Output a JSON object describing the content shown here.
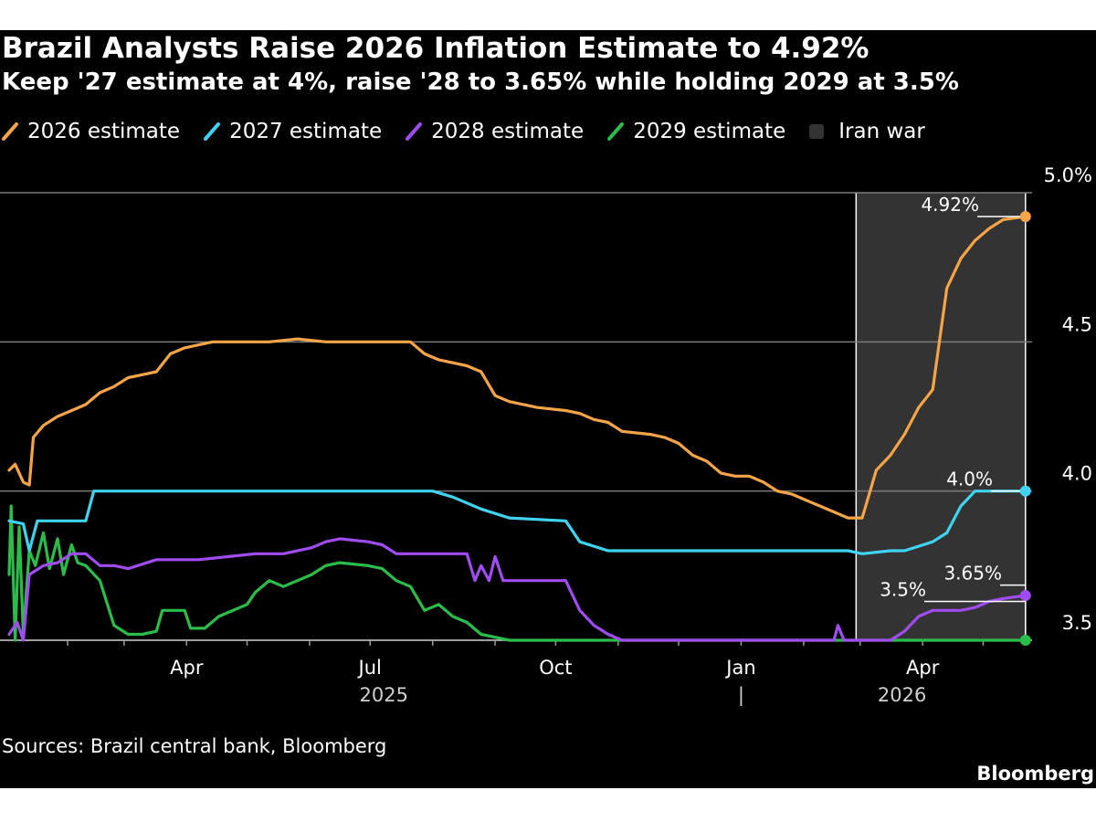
{
  "chart_data": {
    "type": "line",
    "title": "Brazil Analysts Raise 2026 Inflation Estimate to 4.92%",
    "subtitle": "Keep '27 estimate at 4%, raise '28 to 3.65% while holding 2029 at 3.5%",
    "ylim": [
      3.5,
      5.0
    ],
    "y_ticks": [
      {
        "value": 3.5,
        "label": "3.5"
      },
      {
        "value": 4.0,
        "label": "4.0"
      },
      {
        "value": 4.5,
        "label": "4.5"
      },
      {
        "value": 5.0,
        "label": "5.0%"
      }
    ],
    "xlim": [
      "2025-01-03",
      "2026-05-23"
    ],
    "x_ticks": [
      {
        "date": "2025-04-01",
        "label": "Apr"
      },
      {
        "date": "2025-07-01",
        "label": "Jul"
      },
      {
        "date": "2025-10-01",
        "label": "Oct"
      },
      {
        "date": "2026-01-01",
        "label": "Jan"
      },
      {
        "date": "2026-04-01",
        "label": "Apr"
      }
    ],
    "year_labels": [
      {
        "date": "2025-07-01",
        "label": "2025"
      },
      {
        "date": "2026-03-15",
        "label": "2026"
      }
    ],
    "year_separator": {
      "date": "2026-01-01",
      "label": "|"
    },
    "shaded_region": {
      "name": "Iran war",
      "start": "2026-02-27",
      "end": "2026-05-22",
      "color": "#333333"
    },
    "grid": true,
    "legend_position": "top-left",
    "series": [
      {
        "name": "2026 estimate",
        "color": "#f5a447",
        "points": [
          [
            "2025-01-03",
            4.07
          ],
          [
            "2025-01-06",
            4.09
          ],
          [
            "2025-01-10",
            4.03
          ],
          [
            "2025-01-13",
            4.02
          ],
          [
            "2025-01-15",
            4.18
          ],
          [
            "2025-01-20",
            4.22
          ],
          [
            "2025-01-27",
            4.25
          ],
          [
            "2025-02-03",
            4.27
          ],
          [
            "2025-02-10",
            4.29
          ],
          [
            "2025-02-17",
            4.33
          ],
          [
            "2025-02-24",
            4.35
          ],
          [
            "2025-03-03",
            4.38
          ],
          [
            "2025-03-10",
            4.39
          ],
          [
            "2025-03-17",
            4.4
          ],
          [
            "2025-03-24",
            4.46
          ],
          [
            "2025-03-31",
            4.48
          ],
          [
            "2025-04-07",
            4.49
          ],
          [
            "2025-04-14",
            4.5
          ],
          [
            "2025-04-28",
            4.5
          ],
          [
            "2025-05-12",
            4.5
          ],
          [
            "2025-05-26",
            4.51
          ],
          [
            "2025-06-09",
            4.5
          ],
          [
            "2025-06-23",
            4.5
          ],
          [
            "2025-07-07",
            4.5
          ],
          [
            "2025-07-21",
            4.5
          ],
          [
            "2025-07-28",
            4.46
          ],
          [
            "2025-08-04",
            4.44
          ],
          [
            "2025-08-11",
            4.43
          ],
          [
            "2025-08-18",
            4.42
          ],
          [
            "2025-08-25",
            4.4
          ],
          [
            "2025-09-01",
            4.32
          ],
          [
            "2025-09-08",
            4.3
          ],
          [
            "2025-09-22",
            4.28
          ],
          [
            "2025-10-06",
            4.27
          ],
          [
            "2025-10-13",
            4.26
          ],
          [
            "2025-10-20",
            4.24
          ],
          [
            "2025-10-27",
            4.23
          ],
          [
            "2025-11-03",
            4.2
          ],
          [
            "2025-11-17",
            4.19
          ],
          [
            "2025-11-24",
            4.18
          ],
          [
            "2025-12-01",
            4.16
          ],
          [
            "2025-12-08",
            4.12
          ],
          [
            "2025-12-15",
            4.1
          ],
          [
            "2025-12-22",
            4.06
          ],
          [
            "2025-12-29",
            4.05
          ],
          [
            "2026-01-05",
            4.05
          ],
          [
            "2026-01-12",
            4.03
          ],
          [
            "2026-01-19",
            4.0
          ],
          [
            "2026-01-26",
            3.99
          ],
          [
            "2026-02-02",
            3.97
          ],
          [
            "2026-02-09",
            3.95
          ],
          [
            "2026-02-16",
            3.93
          ],
          [
            "2026-02-23",
            3.91
          ],
          [
            "2026-03-02",
            3.91
          ],
          [
            "2026-03-09",
            4.07
          ],
          [
            "2026-03-16",
            4.12
          ],
          [
            "2026-03-23",
            4.19
          ],
          [
            "2026-03-30",
            4.28
          ],
          [
            "2026-04-06",
            4.34
          ],
          [
            "2026-04-13",
            4.68
          ],
          [
            "2026-04-20",
            4.78
          ],
          [
            "2026-04-27",
            4.84
          ],
          [
            "2026-05-04",
            4.88
          ],
          [
            "2026-05-11",
            4.91
          ],
          [
            "2026-05-22",
            4.92
          ]
        ]
      },
      {
        "name": "2027 estimate",
        "color": "#3fd3f0",
        "points": [
          [
            "2025-01-03",
            3.9
          ],
          [
            "2025-01-10",
            3.89
          ],
          [
            "2025-01-13",
            3.8
          ],
          [
            "2025-01-17",
            3.9
          ],
          [
            "2025-02-10",
            3.9
          ],
          [
            "2025-02-14",
            4.0
          ],
          [
            "2025-08-01",
            4.0
          ],
          [
            "2025-08-11",
            3.98
          ],
          [
            "2025-08-25",
            3.94
          ],
          [
            "2025-09-08",
            3.91
          ],
          [
            "2025-10-06",
            3.9
          ],
          [
            "2025-10-13",
            3.83
          ],
          [
            "2025-10-27",
            3.8
          ],
          [
            "2025-11-03",
            3.8
          ],
          [
            "2026-02-23",
            3.8
          ],
          [
            "2026-03-02",
            3.79
          ],
          [
            "2026-03-16",
            3.8
          ],
          [
            "2026-03-23",
            3.8
          ],
          [
            "2026-04-06",
            3.83
          ],
          [
            "2026-04-13",
            3.86
          ],
          [
            "2026-04-20",
            3.95
          ],
          [
            "2026-04-27",
            4.0
          ],
          [
            "2026-05-22",
            4.0
          ]
        ]
      },
      {
        "name": "2028 estimate",
        "color": "#a04cf2",
        "points": [
          [
            "2025-01-03",
            3.52
          ],
          [
            "2025-01-07",
            3.56
          ],
          [
            "2025-01-10",
            3.5
          ],
          [
            "2025-01-13",
            3.72
          ],
          [
            "2025-01-20",
            3.75
          ],
          [
            "2025-01-27",
            3.76
          ],
          [
            "2025-02-03",
            3.79
          ],
          [
            "2025-02-10",
            3.79
          ],
          [
            "2025-02-17",
            3.75
          ],
          [
            "2025-02-24",
            3.75
          ],
          [
            "2025-03-03",
            3.74
          ],
          [
            "2025-03-17",
            3.77
          ],
          [
            "2025-04-07",
            3.77
          ],
          [
            "2025-05-05",
            3.79
          ],
          [
            "2025-05-19",
            3.79
          ],
          [
            "2025-06-02",
            3.81
          ],
          [
            "2025-06-09",
            3.83
          ],
          [
            "2025-06-16",
            3.84
          ],
          [
            "2025-06-30",
            3.83
          ],
          [
            "2025-07-07",
            3.82
          ],
          [
            "2025-07-14",
            3.79
          ],
          [
            "2025-07-21",
            3.79
          ],
          [
            "2025-08-18",
            3.79
          ],
          [
            "2025-08-22",
            3.7
          ],
          [
            "2025-08-25",
            3.75
          ],
          [
            "2025-08-29",
            3.7
          ],
          [
            "2025-09-01",
            3.78
          ],
          [
            "2025-09-05",
            3.7
          ],
          [
            "2025-10-01",
            3.7
          ],
          [
            "2025-10-06",
            3.7
          ],
          [
            "2025-10-13",
            3.6
          ],
          [
            "2025-10-20",
            3.55
          ],
          [
            "2025-10-27",
            3.52
          ],
          [
            "2025-11-03",
            3.5
          ],
          [
            "2026-02-16",
            3.5
          ],
          [
            "2026-02-18",
            3.55
          ],
          [
            "2026-02-21",
            3.5
          ],
          [
            "2026-03-16",
            3.5
          ],
          [
            "2026-03-23",
            3.53
          ],
          [
            "2026-03-30",
            3.58
          ],
          [
            "2026-04-06",
            3.6
          ],
          [
            "2026-04-20",
            3.6
          ],
          [
            "2026-04-27",
            3.61
          ],
          [
            "2026-05-04",
            3.63
          ],
          [
            "2026-05-11",
            3.64
          ],
          [
            "2026-05-22",
            3.65
          ]
        ]
      },
      {
        "name": "2029 estimate",
        "color": "#2bbd4a",
        "points": [
          [
            "2025-01-03",
            3.72
          ],
          [
            "2025-01-04",
            3.95
          ],
          [
            "2025-01-06",
            3.5
          ],
          [
            "2025-01-08",
            3.88
          ],
          [
            "2025-01-10",
            3.52
          ],
          [
            "2025-01-13",
            3.8
          ],
          [
            "2025-01-16",
            3.75
          ],
          [
            "2025-01-20",
            3.86
          ],
          [
            "2025-01-23",
            3.74
          ],
          [
            "2025-01-27",
            3.84
          ],
          [
            "2025-01-30",
            3.72
          ],
          [
            "2025-02-03",
            3.82
          ],
          [
            "2025-02-06",
            3.76
          ],
          [
            "2025-02-10",
            3.75
          ],
          [
            "2025-02-17",
            3.7
          ],
          [
            "2025-02-24",
            3.55
          ],
          [
            "2025-03-03",
            3.52
          ],
          [
            "2025-03-10",
            3.52
          ],
          [
            "2025-03-17",
            3.53
          ],
          [
            "2025-03-20",
            3.6
          ],
          [
            "2025-03-31",
            3.6
          ],
          [
            "2025-04-03",
            3.54
          ],
          [
            "2025-04-10",
            3.54
          ],
          [
            "2025-04-17",
            3.58
          ],
          [
            "2025-04-24",
            3.6
          ],
          [
            "2025-05-01",
            3.62
          ],
          [
            "2025-05-05",
            3.66
          ],
          [
            "2025-05-12",
            3.7
          ],
          [
            "2025-05-19",
            3.68
          ],
          [
            "2025-05-26",
            3.7
          ],
          [
            "2025-06-02",
            3.72
          ],
          [
            "2025-06-09",
            3.75
          ],
          [
            "2025-06-16",
            3.76
          ],
          [
            "2025-06-30",
            3.75
          ],
          [
            "2025-07-07",
            3.74
          ],
          [
            "2025-07-14",
            3.7
          ],
          [
            "2025-07-21",
            3.68
          ],
          [
            "2025-07-28",
            3.6
          ],
          [
            "2025-08-04",
            3.62
          ],
          [
            "2025-08-11",
            3.58
          ],
          [
            "2025-08-18",
            3.56
          ],
          [
            "2025-08-25",
            3.52
          ],
          [
            "2025-09-01",
            3.51
          ],
          [
            "2025-09-08",
            3.5
          ],
          [
            "2026-05-22",
            3.5
          ]
        ]
      }
    ],
    "annotations": [
      {
        "series": "2026 estimate",
        "date": "2026-05-22",
        "value": 4.92,
        "label": "4.92%"
      },
      {
        "series": "2027 estimate",
        "date": "2026-05-22",
        "value": 4.0,
        "label": "4.0%"
      },
      {
        "series": "2028 estimate",
        "date": "2026-05-22",
        "value": 3.65,
        "label": "3.65%"
      },
      {
        "series": "2029 estimate",
        "date": "2026-05-22",
        "value": 3.5,
        "label": "3.5%"
      }
    ],
    "source": "Sources: Brazil central bank, Bloomberg",
    "brand": "Bloomberg"
  }
}
